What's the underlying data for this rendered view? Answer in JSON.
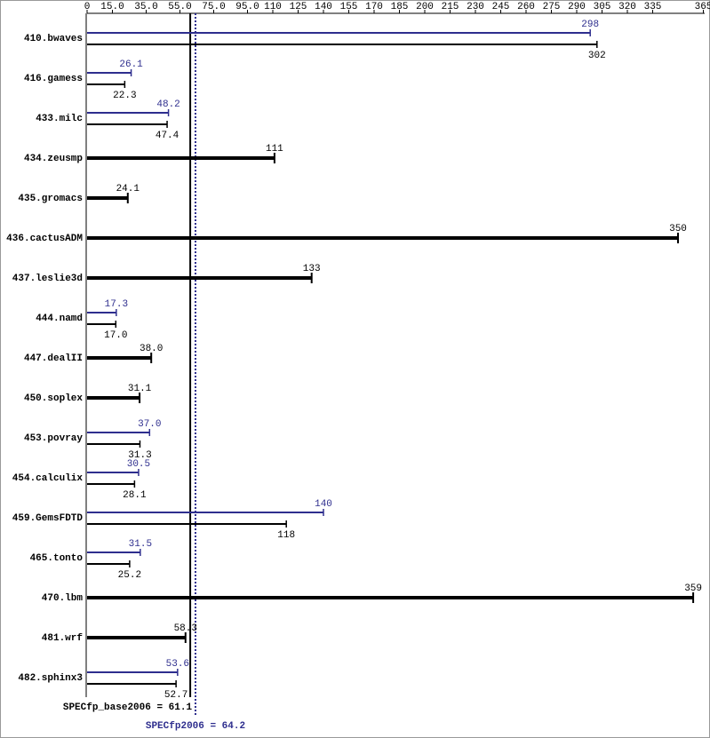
{
  "chart_data": {
    "type": "bar",
    "orientation": "horizontal",
    "categories": [
      "410.bwaves",
      "416.gamess",
      "433.milc",
      "434.zeusmp",
      "435.gromacs",
      "436.cactusADM",
      "437.leslie3d",
      "444.namd",
      "447.dealII",
      "450.soplex",
      "453.povray",
      "454.calculix",
      "459.GemsFDTD",
      "465.tonto",
      "470.lbm",
      "481.wrf",
      "482.sphinx3"
    ],
    "series": [
      {
        "color": "#2e2e8e",
        "values": [
          298,
          26.1,
          48.2,
          null,
          null,
          null,
          null,
          17.3,
          null,
          null,
          37.0,
          30.5,
          140,
          31.5,
          null,
          null,
          53.6
        ],
        "value_labels": [
          "298",
          "26.1",
          "48.2",
          null,
          null,
          null,
          null,
          "17.3",
          null,
          null,
          "37.0",
          "30.5",
          "140",
          "31.5",
          null,
          null,
          "53.6"
        ]
      },
      {
        "color": "#000000",
        "values": [
          302,
          22.3,
          47.4,
          111,
          24.1,
          350,
          133,
          17.0,
          38.0,
          31.1,
          31.3,
          28.1,
          118,
          25.2,
          359,
          58.3,
          52.7
        ],
        "value_labels": [
          "302",
          "22.3",
          "47.4",
          "111",
          "24.1",
          "350",
          "133",
          "17.0",
          "38.0",
          "31.1",
          "31.3",
          "28.1",
          "118",
          "25.2",
          "359",
          "58.3",
          "52.7"
        ]
      }
    ],
    "xlim": [
      0,
      365
    ],
    "xticks": [
      0,
      {
        "value": 15,
        "label": "15.0"
      },
      {
        "value": 35,
        "label": "35.0"
      },
      {
        "value": 55,
        "label": "55.0"
      },
      {
        "value": 75,
        "label": "75.0"
      },
      {
        "value": 95,
        "label": "95.0"
      },
      110,
      125,
      140,
      155,
      170,
      185,
      200,
      215,
      230,
      245,
      260,
      275,
      290,
      305,
      320,
      335,
      365
    ],
    "reference_lines": [
      {
        "label": "SPECfp_base2006 = 61.1",
        "value": 61.1,
        "color": "#000000"
      },
      {
        "label": "SPECfp2006 = 64.2",
        "value": 64.2,
        "color": "#2e2e8e"
      }
    ]
  }
}
